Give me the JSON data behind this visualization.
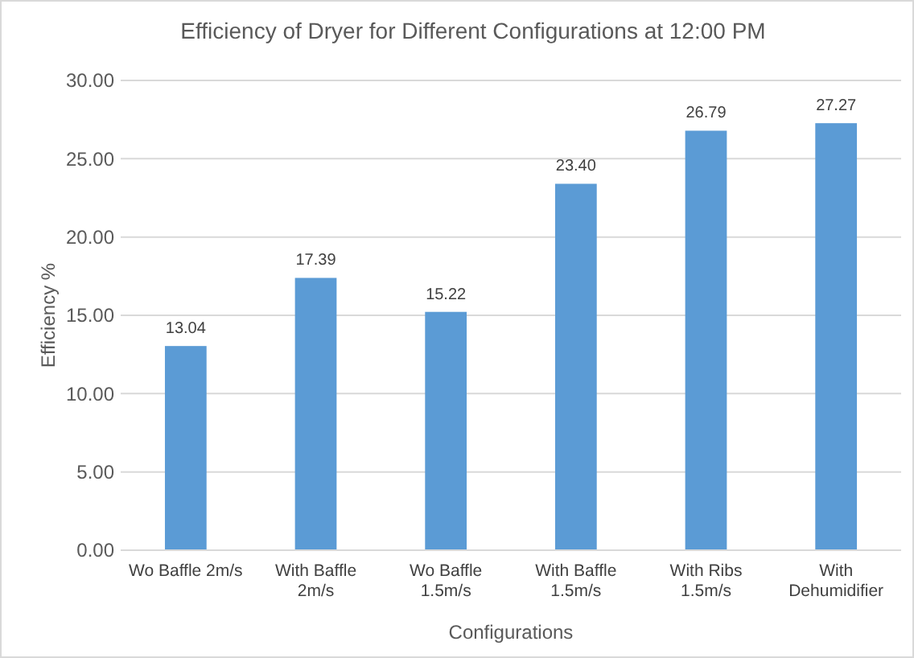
{
  "chart_data": {
    "type": "bar",
    "title": "Efficiency of Dryer for Different Configurations at 12:00 PM",
    "xlabel": "Configurations",
    "ylabel": "Efficiency %",
    "categories": [
      "Wo Baffle 2m/s",
      "With Baffle 2m/s",
      "Wo Baffle 1.5m/s",
      "With Baffle 1.5m/s",
      "With Ribs 1.5m/s",
      "With Dehumidifier"
    ],
    "values": [
      13.04,
      17.39,
      15.22,
      23.4,
      26.79,
      27.27
    ],
    "value_labels": [
      "13.04",
      "17.39",
      "15.22",
      "23.40",
      "26.79",
      "27.27"
    ],
    "color": "#5b9bd5",
    "ylim": [
      0,
      30
    ],
    "yticks": [
      {
        "value": 0,
        "label": "0.00"
      },
      {
        "value": 5,
        "label": "5.00"
      },
      {
        "value": 10,
        "label": "10.00"
      },
      {
        "value": 15,
        "label": "15.00"
      },
      {
        "value": 20,
        "label": "20.00"
      },
      {
        "value": 25,
        "label": "25.00"
      },
      {
        "value": 30,
        "label": "30.00"
      }
    ],
    "grid": "y"
  }
}
